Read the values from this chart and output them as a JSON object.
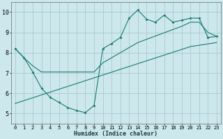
{
  "bg_color": "#cce8ed",
  "grid_color": "#aac8d0",
  "line_color": "#1a7a6e",
  "xlabel": "Humidex (Indice chaleur)",
  "xlim": [
    -0.5,
    23.5
  ],
  "ylim": [
    4.5,
    10.5
  ],
  "xticks": [
    0,
    1,
    2,
    3,
    4,
    5,
    6,
    7,
    8,
    9,
    10,
    11,
    12,
    13,
    14,
    15,
    16,
    17,
    18,
    19,
    20,
    21,
    22,
    23
  ],
  "yticks": [
    5,
    6,
    7,
    8,
    9,
    10
  ],
  "line1_x": [
    0,
    1,
    2,
    3,
    4,
    5,
    6,
    7,
    8,
    9,
    10,
    11,
    12,
    13,
    14,
    15,
    16,
    17,
    18,
    19,
    20,
    21,
    22,
    23
  ],
  "line1_y": [
    8.2,
    7.75,
    7.05,
    6.25,
    5.8,
    5.55,
    5.3,
    5.15,
    5.05,
    5.4,
    8.2,
    8.45,
    8.75,
    9.7,
    10.1,
    9.65,
    9.5,
    9.85,
    9.5,
    9.6,
    9.7,
    9.7,
    8.75,
    8.8
  ],
  "line2_x": [
    0,
    1,
    2,
    3,
    9,
    10,
    11,
    14,
    19,
    20,
    21,
    22,
    23
  ],
  "line2_y": [
    8.2,
    7.75,
    7.35,
    7.05,
    7.05,
    7.5,
    7.75,
    8.5,
    9.3,
    9.5,
    9.5,
    9.0,
    8.8
  ],
  "line3_x": [
    0,
    5,
    10,
    15,
    20,
    23
  ],
  "line3_y": [
    5.5,
    6.2,
    6.9,
    7.6,
    8.3,
    8.5
  ]
}
